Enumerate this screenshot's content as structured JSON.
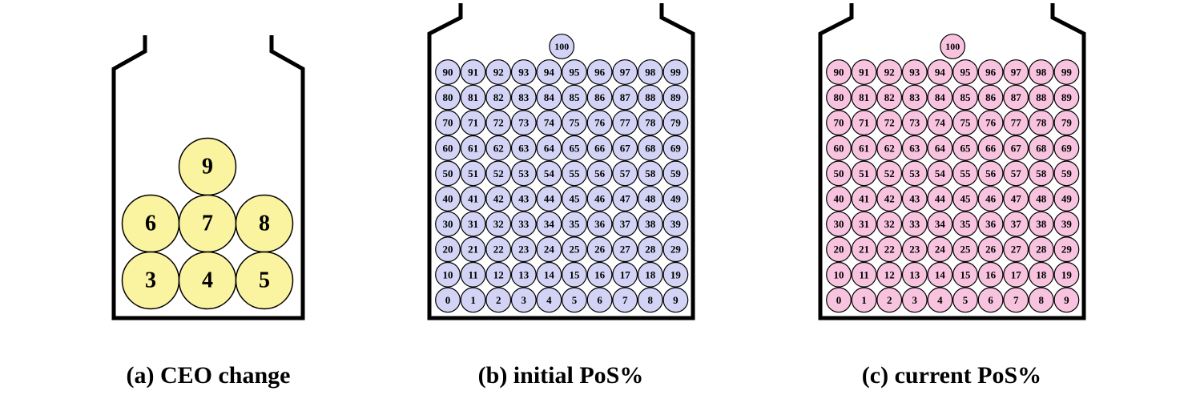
{
  "colors": {
    "jar_outline": "#000000",
    "ceo_ball_fill": "#FAF3A0",
    "initial_ball_fill": "#D3D3F5",
    "current_ball_fill": "#F8C3DE",
    "ball_stroke": "#000000"
  },
  "panels": [
    {
      "id": "a",
      "caption": "(a) CEO change",
      "fill_key": "ceo_ball_fill",
      "balls": [
        "9",
        "6",
        "7",
        "8",
        "3",
        "4",
        "5"
      ]
    },
    {
      "id": "b",
      "caption": "(b) initial PoS%",
      "fill_key": "initial_ball_fill",
      "balls": [
        "100",
        "90",
        "91",
        "92",
        "93",
        "94",
        "95",
        "96",
        "97",
        "98",
        "99",
        "80",
        "81",
        "82",
        "83",
        "84",
        "85",
        "86",
        "87",
        "88",
        "89",
        "70",
        "71",
        "72",
        "73",
        "74",
        "75",
        "76",
        "77",
        "78",
        "79",
        "60",
        "61",
        "62",
        "63",
        "64",
        "65",
        "66",
        "67",
        "68",
        "69",
        "50",
        "51",
        "52",
        "53",
        "54",
        "55",
        "56",
        "57",
        "58",
        "59",
        "40",
        "41",
        "42",
        "43",
        "44",
        "45",
        "46",
        "47",
        "48",
        "49",
        "30",
        "31",
        "32",
        "33",
        "34",
        "35",
        "36",
        "37",
        "38",
        "39",
        "20",
        "21",
        "22",
        "23",
        "24",
        "25",
        "26",
        "27",
        "28",
        "29",
        "10",
        "11",
        "12",
        "13",
        "14",
        "15",
        "16",
        "17",
        "18",
        "19",
        "0",
        "1",
        "2",
        "3",
        "4",
        "5",
        "6",
        "7",
        "8",
        "9"
      ]
    },
    {
      "id": "c",
      "caption": "(c) current PoS%",
      "fill_key": "current_ball_fill",
      "balls": [
        "100",
        "90",
        "91",
        "92",
        "93",
        "94",
        "95",
        "96",
        "97",
        "98",
        "99",
        "80",
        "81",
        "82",
        "83",
        "84",
        "85",
        "86",
        "87",
        "88",
        "89",
        "70",
        "71",
        "72",
        "73",
        "74",
        "75",
        "76",
        "77",
        "78",
        "79",
        "60",
        "61",
        "62",
        "63",
        "64",
        "65",
        "66",
        "67",
        "68",
        "69",
        "50",
        "51",
        "52",
        "53",
        "54",
        "55",
        "56",
        "57",
        "58",
        "59",
        "40",
        "41",
        "42",
        "43",
        "44",
        "45",
        "46",
        "47",
        "48",
        "49",
        "30",
        "31",
        "32",
        "33",
        "34",
        "35",
        "36",
        "37",
        "38",
        "39",
        "20",
        "21",
        "22",
        "23",
        "24",
        "25",
        "26",
        "27",
        "28",
        "29",
        "10",
        "11",
        "12",
        "13",
        "14",
        "15",
        "16",
        "17",
        "18",
        "19",
        "0",
        "1",
        "2",
        "3",
        "4",
        "5",
        "6",
        "7",
        "8",
        "9"
      ]
    }
  ]
}
